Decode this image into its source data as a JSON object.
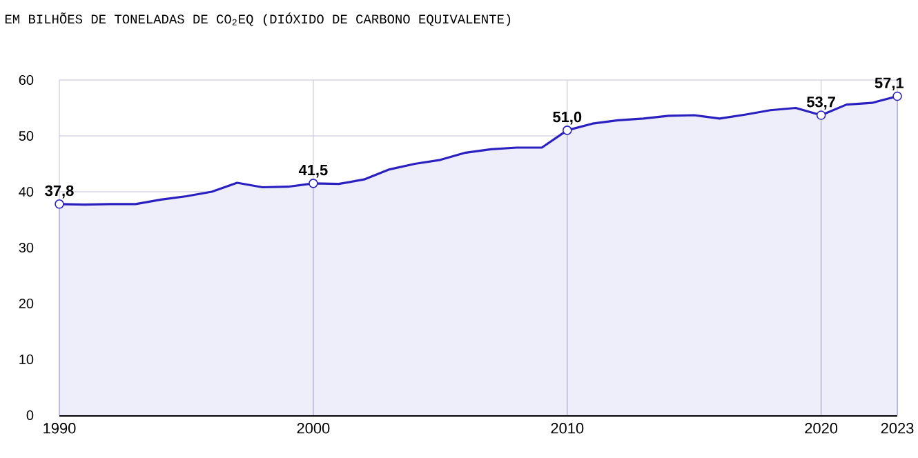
{
  "chart_data": {
    "type": "area",
    "title": "EM BILHÕES DE TONELADAS DE CO$_{2}$EQ (DIÓXIDO DE CARBONO EQUIVALENTE)",
    "x": [
      1990,
      1991,
      1992,
      1993,
      1994,
      1995,
      1996,
      1997,
      1998,
      1999,
      2000,
      2001,
      2002,
      2003,
      2004,
      2005,
      2006,
      2007,
      2008,
      2009,
      2010,
      2011,
      2012,
      2013,
      2014,
      2015,
      2016,
      2017,
      2018,
      2019,
      2020,
      2021,
      2022,
      2023
    ],
    "series": [
      {
        "color": "#2a1fbf",
        "values": [
          37.8,
          37.7,
          37.8,
          37.8,
          38.6,
          39.2,
          40.0,
          41.6,
          40.8,
          40.9,
          41.5,
          41.4,
          42.2,
          44.0,
          45.0,
          45.7,
          47.0,
          47.6,
          47.9,
          47.9,
          51.0,
          52.2,
          52.8,
          53.1,
          53.6,
          53.7,
          53.1,
          53.8,
          54.6,
          55.0,
          53.7,
          55.6,
          55.9,
          57.1
        ],
        "value_labels": [
          "37,8",
          null,
          null,
          null,
          null,
          null,
          null,
          null,
          null,
          null,
          "41,5",
          null,
          null,
          null,
          null,
          null,
          null,
          null,
          null,
          null,
          "51,0",
          null,
          null,
          null,
          null,
          null,
          null,
          null,
          null,
          null,
          "53,7",
          null,
          null,
          "57,1"
        ]
      }
    ],
    "xlim": [
      1990,
      2023
    ],
    "ylim": [
      0,
      60
    ],
    "xticks": [
      1990,
      2000,
      2010,
      2020,
      2023
    ],
    "yticks": [
      0,
      10,
      20,
      30,
      40,
      50,
      60
    ],
    "grid": true,
    "line_style": "solid"
  }
}
